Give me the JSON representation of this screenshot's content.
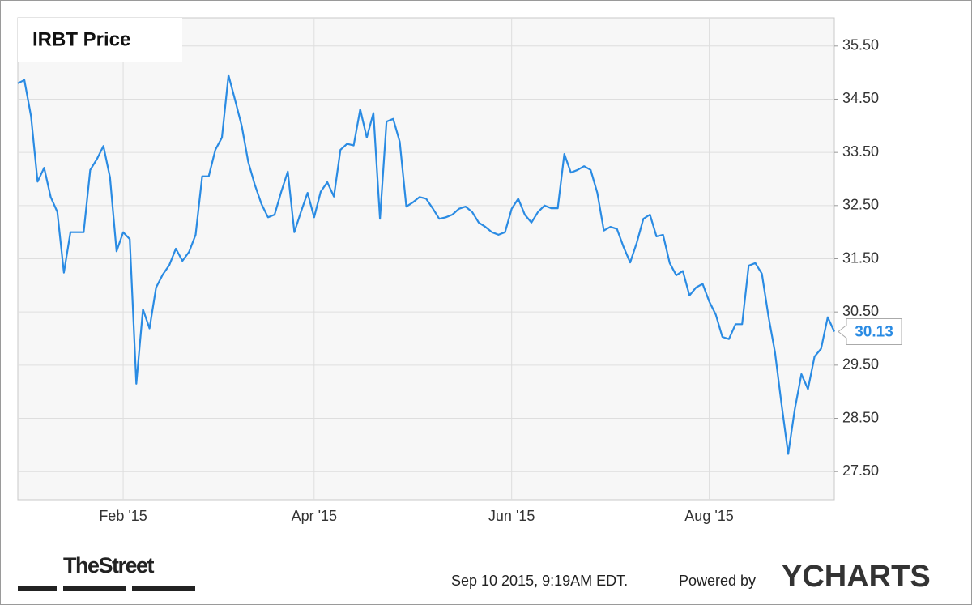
{
  "chart_data": {
    "type": "line",
    "title": "IRBT Price",
    "categories": [
      null,
      null,
      null,
      null,
      null,
      null,
      null,
      null,
      null,
      null,
      null,
      null,
      null,
      null,
      null,
      null,
      "Feb '15",
      null,
      null,
      null,
      null,
      null,
      null,
      null,
      null,
      null,
      null,
      null,
      null,
      null,
      null,
      null,
      null,
      null,
      null,
      null,
      null,
      null,
      null,
      null,
      null,
      null,
      null,
      null,
      null,
      "Apr '15",
      null,
      null,
      null,
      null,
      null,
      null,
      null,
      null,
      null,
      null,
      null,
      null,
      null,
      null,
      null,
      null,
      null,
      null,
      null,
      null,
      null,
      null,
      null,
      null,
      null,
      null,
      null,
      null,
      null,
      "Jun '15",
      null,
      null,
      null,
      null,
      null,
      null,
      null,
      null,
      null,
      null,
      null,
      null,
      null,
      null,
      null,
      null,
      null,
      null,
      null,
      null,
      null,
      null,
      null,
      null,
      null,
      null,
      null,
      null,
      null,
      "Aug '15",
      null,
      null,
      null,
      null,
      null,
      null,
      null,
      null,
      null,
      null,
      null,
      null,
      null,
      null,
      null,
      null,
      null,
      null,
      null
    ],
    "values": [
      34.8,
      34.86,
      34.18,
      32.95,
      33.21,
      32.66,
      32.38,
      31.24,
      32.0,
      32.0,
      32.0,
      33.17,
      33.37,
      33.62,
      33.03,
      31.64,
      32.0,
      31.87,
      29.15,
      30.55,
      30.19,
      30.96,
      31.2,
      31.38,
      31.69,
      31.46,
      31.63,
      31.95,
      33.05,
      33.05,
      33.55,
      33.78,
      34.95,
      34.48,
      34.0,
      33.32,
      32.89,
      32.53,
      32.28,
      32.33,
      32.76,
      33.14,
      32.0,
      32.38,
      32.74,
      32.28,
      32.76,
      32.94,
      32.67,
      33.55,
      33.66,
      33.63,
      34.31,
      33.78,
      34.24,
      32.25,
      34.08,
      34.13,
      33.7,
      32.48,
      32.56,
      32.66,
      32.63,
      32.45,
      32.25,
      32.28,
      32.33,
      32.44,
      32.48,
      32.38,
      32.18,
      32.1,
      32.0,
      31.95,
      32.0,
      32.44,
      32.63,
      32.33,
      32.18,
      32.38,
      32.5,
      32.45,
      32.45,
      33.47,
      33.12,
      33.17,
      33.24,
      33.17,
      32.74,
      32.03,
      32.1,
      32.06,
      31.72,
      31.43,
      31.8,
      32.25,
      32.33,
      31.92,
      31.95,
      31.42,
      31.19,
      31.27,
      30.81,
      30.96,
      31.03,
      30.7,
      30.45,
      30.03,
      29.99,
      30.27,
      30.27,
      31.37,
      31.42,
      31.22,
      30.42,
      29.74,
      28.75,
      27.83,
      28.67,
      29.33,
      29.05,
      29.66,
      29.81,
      30.4,
      30.13
    ],
    "color": "#2a8be3",
    "ylim": [
      26.97,
      36.03
    ],
    "yticks": [
      {
        "value": 27.5,
        "label": "27.50"
      },
      {
        "value": 28.5,
        "label": "28.50"
      },
      {
        "value": 29.5,
        "label": "29.50"
      },
      {
        "value": 30.5,
        "label": "30.50"
      },
      {
        "value": 31.5,
        "label": "31.50"
      },
      {
        "value": 32.5,
        "label": "32.50"
      },
      {
        "value": 33.5,
        "label": "33.50"
      },
      {
        "value": 34.5,
        "label": "34.50"
      },
      {
        "value": 35.5,
        "label": "35.50"
      }
    ],
    "grid": true,
    "logo": "TheStreet",
    "timestamp": "Sep 10 2015, 9:19AM EDT.",
    "powered": "Powered by",
    "brand": "YCHARTS"
  }
}
